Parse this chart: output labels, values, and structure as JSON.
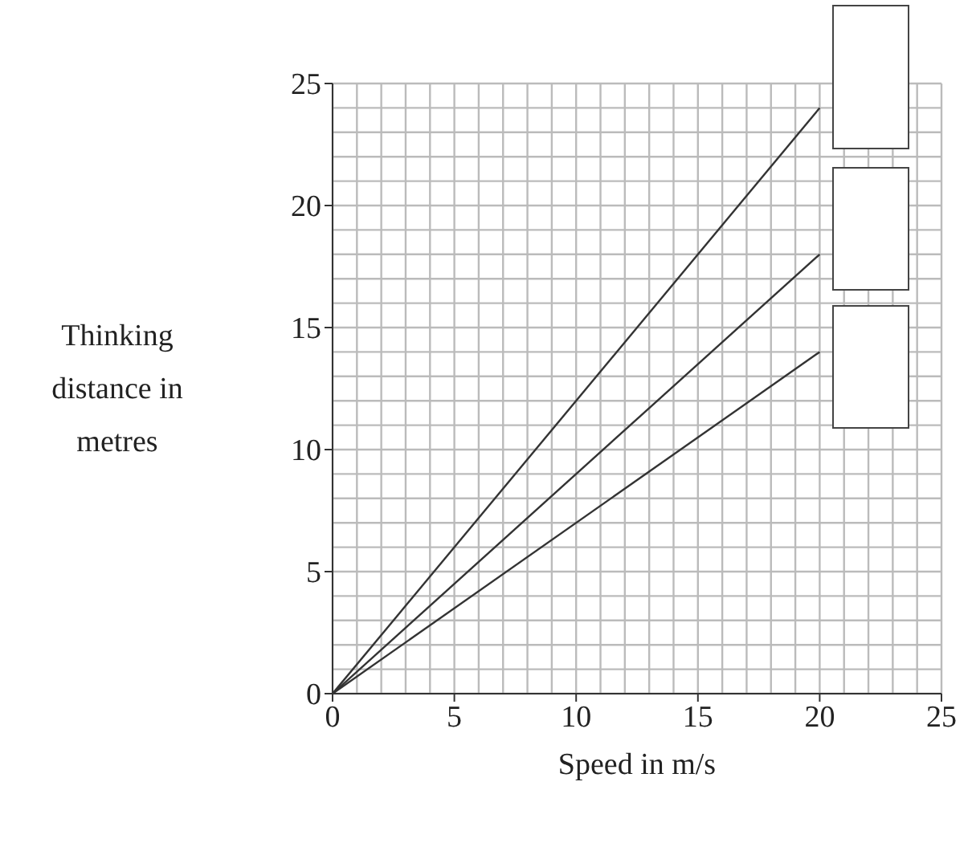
{
  "chart_data": {
    "type": "line",
    "xlabel": "Speed in m/s",
    "ylabel": "Thinking distance in metres",
    "x": [
      0,
      20
    ],
    "series": [
      {
        "color": "#333333",
        "values": [
          0,
          24
        ]
      },
      {
        "color": "#333333",
        "values": [
          0,
          18
        ]
      },
      {
        "color": "#333333",
        "values": [
          0,
          14
        ]
      }
    ],
    "xlim": [
      0,
      25
    ],
    "xticks": [
      0,
      5,
      10,
      15,
      20,
      25
    ],
    "ylim": [
      0,
      25
    ],
    "yticks": [
      0,
      5,
      10,
      15,
      20,
      25
    ],
    "grid": true
  }
}
